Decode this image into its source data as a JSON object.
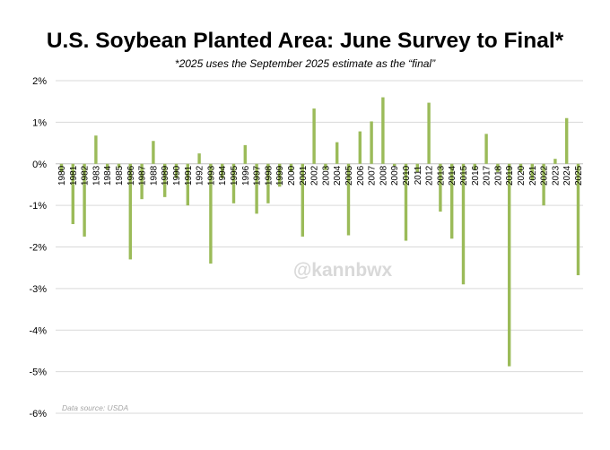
{
  "chart_data": {
    "type": "bar",
    "title": "U.S. Soybean Planted Area: June Survey to Final*",
    "subtitle": "*2025 uses the September 2025 estimate as the “final”",
    "xlabel": "",
    "ylabel": "",
    "ylim": [
      -6,
      2
    ],
    "yticks": [
      2,
      1,
      0,
      -1,
      -2,
      -3,
      -4,
      -5,
      -6
    ],
    "ytick_labels": [
      "2%",
      "1%",
      "0%",
      "-1%",
      "-2%",
      "-3%",
      "-4%",
      "-5%",
      "-6%"
    ],
    "grid": true,
    "bar_color": "#9bbb59",
    "watermark": "@kannbwx",
    "source_note": "Data source: USDA",
    "categories": [
      "1980",
      "1981",
      "1982",
      "1983",
      "1984",
      "1985",
      "1986",
      "1987",
      "1988",
      "1989",
      "1990",
      "1991",
      "1992",
      "1993",
      "1994",
      "1995",
      "1996",
      "1997",
      "1998",
      "1999",
      "2000",
      "2001",
      "2002",
      "2003",
      "2004",
      "2005",
      "2006",
      "2007",
      "2008",
      "2009",
      "2010",
      "2011",
      "2012",
      "2013",
      "2014",
      "2015",
      "2016",
      "2017",
      "2018",
      "2019",
      "2020",
      "2021",
      "2022",
      "2023",
      "2024",
      "2025"
    ],
    "values": [
      -0.2,
      -1.45,
      -1.75,
      0.68,
      -0.15,
      -0.1,
      -2.3,
      -0.85,
      0.55,
      -0.8,
      -0.35,
      -1.0,
      0.25,
      -2.4,
      -0.35,
      -0.95,
      0.45,
      -1.2,
      -0.95,
      -0.55,
      -0.2,
      -1.75,
      1.33,
      -0.15,
      0.52,
      -1.72,
      0.78,
      1.02,
      1.6,
      -0.05,
      -1.85,
      -0.2,
      1.47,
      -1.15,
      -1.8,
      -2.9,
      -0.15,
      0.72,
      -0.2,
      -4.87,
      -0.2,
      -0.4,
      -1.0,
      0.12,
      1.1,
      -2.68
    ]
  }
}
